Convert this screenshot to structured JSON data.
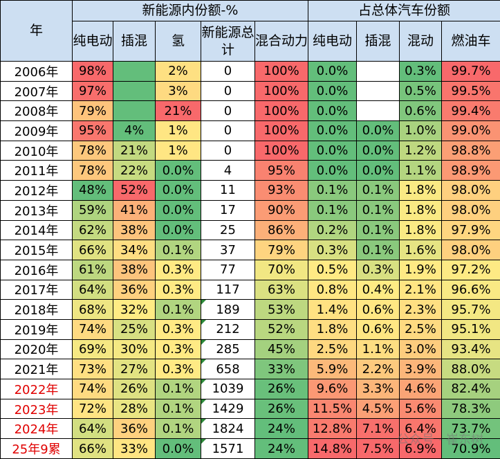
{
  "header": {
    "corner": "年",
    "groups": [
      "新能源内份额-%",
      "占总体汽车份额"
    ],
    "columns": [
      "纯电动",
      "插混",
      "氢",
      "新能源总计",
      "混合动力",
      "纯电动",
      "插混",
      "混动",
      "燃油车"
    ]
  },
  "rows": [
    [
      "2006年",
      "98%",
      null,
      "2%",
      0,
      "100%",
      "0.0%",
      null,
      "0.3%",
      "99.7%"
    ],
    [
      "2007年",
      "97%",
      null,
      "3%",
      0,
      "100%",
      "0.0%",
      null,
      "0.5%",
      "99.5%"
    ],
    [
      "2008年",
      "79%",
      null,
      "21%",
      0,
      "100%",
      "0.0%",
      null,
      "0.6%",
      "99.4%"
    ],
    [
      "2009年",
      "95%",
      "4%",
      "1%",
      0,
      "100%",
      "0.0%",
      "0.0%",
      "1.0%",
      "99.0%"
    ],
    [
      "2010年",
      "78%",
      "21%",
      "1%",
      0,
      "100%",
      "0.0%",
      "0.0%",
      "1.2%",
      "98.8%"
    ],
    [
      "2011年",
      "78%",
      "22%",
      "0.0%",
      4,
      "95%",
      "0.0%",
      "0.0%",
      "1.1%",
      "98.9%"
    ],
    [
      "2012年",
      "48%",
      "52%",
      "0.0%",
      11,
      "93%",
      "0.1%",
      "0.1%",
      "1.8%",
      "98.0%"
    ],
    [
      "2013年",
      "59%",
      "41%",
      "0.0%",
      17,
      "90%",
      "0.1%",
      "0.1%",
      "1.8%",
      "98.0%"
    ],
    [
      "2014年",
      "62%",
      "38%",
      "0.0%",
      25,
      "86%",
      "0.2%",
      "0.1%",
      "1.8%",
      "97.9%"
    ],
    [
      "2015年",
      "66%",
      "34%",
      "0.1%",
      37,
      "79%",
      "0.3%",
      "0.1%",
      "1.6%",
      "98.0%"
    ],
    [
      "2016年",
      "61%",
      "38%",
      "0.3%",
      77,
      "70%",
      "0.5%",
      "0.3%",
      "1.9%",
      "97.2%"
    ],
    [
      "2017年",
      "64%",
      "36%",
      "0.3%",
      117,
      "63%",
      "0.8%",
      "0.4%",
      "2.1%",
      "96.6%"
    ],
    [
      "2018年",
      "68%",
      "32%",
      "0.1%",
      189,
      "53%",
      "1.4%",
      "0.6%",
      "2.3%",
      "95.7%"
    ],
    [
      "2019年",
      "74%",
      "25%",
      "0.3%",
      212,
      "52%",
      "1.8%",
      "0.6%",
      "2.5%",
      "95.1%"
    ],
    [
      "2020年",
      "69%",
      "30%",
      "0.3%",
      285,
      "45%",
      "2.5%",
      "1.1%",
      "3.0%",
      "93.4%"
    ],
    [
      "2021年",
      "73%",
      "27%",
      "0.3%",
      658,
      "33%",
      "5.9%",
      "2.2%",
      "3.9%",
      "88.0%"
    ],
    [
      "2022年",
      "74%",
      "26%",
      "0.1%",
      1039,
      "26%",
      "9.6%",
      "3.3%",
      "4.6%",
      "82.4%"
    ],
    [
      "2023年",
      "72%",
      "28%",
      "0.1%",
      1429,
      "26%",
      "11.5%",
      "4.5%",
      "5.6%",
      "78.3%"
    ],
    [
      "2024年",
      "64%",
      "36%",
      "0.1%",
      1824,
      "24%",
      "12.8%",
      "7.1%",
      "6.4%",
      "73.7%"
    ],
    [
      "25年9累",
      "66%",
      "33%",
      "0.0%",
      1571,
      "24%",
      "14.8%",
      "7.5%",
      "6.9%",
      "70.9%"
    ]
  ],
  "watermark": "公众号 · 崔东树"
}
